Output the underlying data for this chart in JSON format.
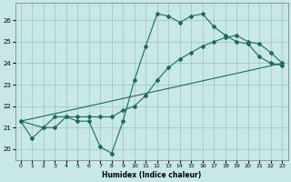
{
  "xlabel": "Humidex (Indice chaleur)",
  "bg_color": "#c8e8e8",
  "grid_color": "#a0c0c0",
  "line_color": "#1a6b5a",
  "xlim": [
    -0.5,
    23.5
  ],
  "ylim": [
    19.5,
    26.8
  ],
  "xticks": [
    0,
    1,
    2,
    3,
    4,
    5,
    6,
    7,
    8,
    9,
    10,
    11,
    12,
    13,
    14,
    15,
    16,
    17,
    18,
    19,
    20,
    21,
    22,
    23
  ],
  "yticks": [
    20,
    21,
    22,
    23,
    24,
    25,
    26
  ],
  "line1_jagged": {
    "x": [
      0,
      1,
      2,
      3,
      4,
      5,
      6,
      7,
      8,
      9,
      10,
      11,
      12,
      13,
      14,
      15,
      16,
      17,
      18,
      19,
      20,
      21,
      22,
      23
    ],
    "y": [
      21.3,
      20.5,
      21.0,
      21.5,
      21.5,
      21.3,
      21.3,
      20.1,
      19.8,
      21.3,
      23.2,
      24.8,
      26.3,
      26.2,
      25.9,
      26.2,
      26.3,
      25.7,
      25.3,
      25.0,
      24.9,
      24.3,
      24.0,
      23.9
    ]
  },
  "line2_upper": {
    "x": [
      0,
      2,
      3,
      4,
      5,
      6,
      7,
      8,
      9,
      10,
      11,
      12,
      13,
      14,
      15,
      16,
      17,
      18,
      19,
      20,
      21,
      22,
      23
    ],
    "y": [
      21.3,
      21.0,
      21.0,
      21.5,
      21.5,
      21.5,
      21.5,
      21.5,
      21.8,
      22.0,
      22.5,
      23.2,
      23.8,
      24.2,
      24.5,
      24.8,
      25.0,
      25.2,
      25.3,
      25.0,
      24.9,
      24.5,
      24.0
    ]
  },
  "line3_linear": {
    "x": [
      0,
      23
    ],
    "y": [
      21.3,
      24.0
    ]
  }
}
